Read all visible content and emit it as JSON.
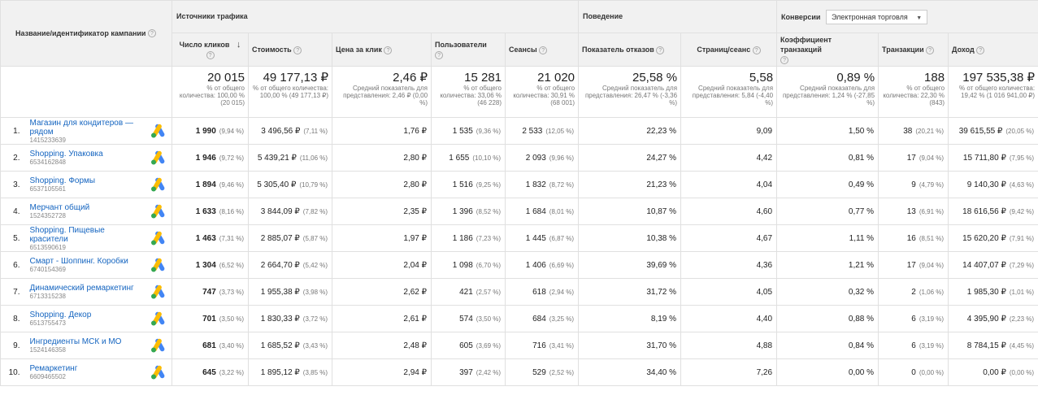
{
  "headers": {
    "name_col": "Название/идентификатор кампании",
    "group_traffic": "Источники трафика",
    "group_behavior": "Поведение",
    "group_conversions": "Конверсии",
    "conversions_select": "Электронная торговля",
    "clicks": "Число кликов",
    "cost": "Стоимость",
    "cpc": "Цена за клик",
    "users": "Пользователи",
    "sessions": "Сеансы",
    "bounce": "Показатель отказов",
    "pages": "Страниц/сеанс",
    "convrate": "Коэффициент транзакций",
    "transactions": "Транзакции",
    "revenue": "Доход",
    "help": "?"
  },
  "totals": {
    "clicks": {
      "big": "20 015",
      "small": "% от общего количества: 100,00 % (20 015)"
    },
    "cost": {
      "big": "49 177,13 ₽",
      "small": "% от общего количества: 100,00 % (49 177,13 ₽)"
    },
    "cpc": {
      "big": "2,46 ₽",
      "small": "Средний показатель для представления: 2,46 ₽ (0,00 %)"
    },
    "users": {
      "big": "15 281",
      "small": "% от общего количества: 33,06 % (46 228)"
    },
    "sessions": {
      "big": "21 020",
      "small": "% от общего количества: 30,91 % (68 001)"
    },
    "bounce": {
      "big": "25,58 %",
      "small": "Средний показатель для представления: 26,47 % (-3,36 %)"
    },
    "pages": {
      "big": "5,58",
      "small": "Средний показатель для представления: 5,84 (-4,40 %)"
    },
    "convrate": {
      "big": "0,89 %",
      "small": "Средний показатель для представления: 1,24 % (-27,85 %)"
    },
    "transactions": {
      "big": "188",
      "small": "% от общего количества: 22,30 % (843)"
    },
    "revenue": {
      "big": "197 535,38 ₽",
      "small": "% от общего количества: 19,42 % (1 016 941,00 ₽)"
    }
  },
  "rows": [
    {
      "idx": "1.",
      "name": "Магазин для кондитеров — рядом",
      "id": "1415233639",
      "clicks": "1 990",
      "clicks_pct": "(9,94 %)",
      "cost": "3 496,56 ₽",
      "cost_pct": "(7,11 %)",
      "cpc": "1,76 ₽",
      "users": "1 535",
      "users_pct": "(9,36 %)",
      "sessions": "2 533",
      "sessions_pct": "(12,05 %)",
      "bounce": "22,23 %",
      "pages": "9,09",
      "convrate": "1,50 %",
      "transactions": "38",
      "transactions_pct": "(20,21 %)",
      "revenue": "39 615,55 ₽",
      "revenue_pct": "(20,05 %)"
    },
    {
      "idx": "2.",
      "name": "Shopping. Упаковка",
      "id": "6534162848",
      "clicks": "1 946",
      "clicks_pct": "(9,72 %)",
      "cost": "5 439,21 ₽",
      "cost_pct": "(11,06 %)",
      "cpc": "2,80 ₽",
      "users": "1 655",
      "users_pct": "(10,10 %)",
      "sessions": "2 093",
      "sessions_pct": "(9,96 %)",
      "bounce": "24,27 %",
      "pages": "4,42",
      "convrate": "0,81 %",
      "transactions": "17",
      "transactions_pct": "(9,04 %)",
      "revenue": "15 711,80 ₽",
      "revenue_pct": "(7,95 %)"
    },
    {
      "idx": "3.",
      "name": "Shopping. Формы",
      "id": "6537105561",
      "clicks": "1 894",
      "clicks_pct": "(9,46 %)",
      "cost": "5 305,40 ₽",
      "cost_pct": "(10,79 %)",
      "cpc": "2,80 ₽",
      "users": "1 516",
      "users_pct": "(9,25 %)",
      "sessions": "1 832",
      "sessions_pct": "(8,72 %)",
      "bounce": "21,23 %",
      "pages": "4,04",
      "convrate": "0,49 %",
      "transactions": "9",
      "transactions_pct": "(4,79 %)",
      "revenue": "9 140,30 ₽",
      "revenue_pct": "(4,63 %)"
    },
    {
      "idx": "4.",
      "name": "Мерчант общий",
      "id": "1524352728",
      "clicks": "1 633",
      "clicks_pct": "(8,16 %)",
      "cost": "3 844,09 ₽",
      "cost_pct": "(7,82 %)",
      "cpc": "2,35 ₽",
      "users": "1 396",
      "users_pct": "(8,52 %)",
      "sessions": "1 684",
      "sessions_pct": "(8,01 %)",
      "bounce": "10,87 %",
      "pages": "4,60",
      "convrate": "0,77 %",
      "transactions": "13",
      "transactions_pct": "(6,91 %)",
      "revenue": "18 616,56 ₽",
      "revenue_pct": "(9,42 %)"
    },
    {
      "idx": "5.",
      "name": "Shopping. Пищевые красители",
      "id": "6513590619",
      "clicks": "1 463",
      "clicks_pct": "(7,31 %)",
      "cost": "2 885,07 ₽",
      "cost_pct": "(5,87 %)",
      "cpc": "1,97 ₽",
      "users": "1 186",
      "users_pct": "(7,23 %)",
      "sessions": "1 445",
      "sessions_pct": "(6,87 %)",
      "bounce": "10,38 %",
      "pages": "4,67",
      "convrate": "1,11 %",
      "transactions": "16",
      "transactions_pct": "(8,51 %)",
      "revenue": "15 620,20 ₽",
      "revenue_pct": "(7,91 %)"
    },
    {
      "idx": "6.",
      "name": "Смарт - Шоппинг. Коробки",
      "id": "6740154369",
      "clicks": "1 304",
      "clicks_pct": "(6,52 %)",
      "cost": "2 664,70 ₽",
      "cost_pct": "(5,42 %)",
      "cpc": "2,04 ₽",
      "users": "1 098",
      "users_pct": "(6,70 %)",
      "sessions": "1 406",
      "sessions_pct": "(6,69 %)",
      "bounce": "39,69 %",
      "pages": "4,36",
      "convrate": "1,21 %",
      "transactions": "17",
      "transactions_pct": "(9,04 %)",
      "revenue": "14 407,07 ₽",
      "revenue_pct": "(7,29 %)"
    },
    {
      "idx": "7.",
      "name": "Динамический ремаркетинг",
      "id": "6713315238",
      "clicks": "747",
      "clicks_pct": "(3,73 %)",
      "cost": "1 955,38 ₽",
      "cost_pct": "(3,98 %)",
      "cpc": "2,62 ₽",
      "users": "421",
      "users_pct": "(2,57 %)",
      "sessions": "618",
      "sessions_pct": "(2,94 %)",
      "bounce": "31,72 %",
      "pages": "4,05",
      "convrate": "0,32 %",
      "transactions": "2",
      "transactions_pct": "(1,06 %)",
      "revenue": "1 985,30 ₽",
      "revenue_pct": "(1,01 %)"
    },
    {
      "idx": "8.",
      "name": "Shopping. Декор",
      "id": "6513755473",
      "clicks": "701",
      "clicks_pct": "(3,50 %)",
      "cost": "1 830,33 ₽",
      "cost_pct": "(3,72 %)",
      "cpc": "2,61 ₽",
      "users": "574",
      "users_pct": "(3,50 %)",
      "sessions": "684",
      "sessions_pct": "(3,25 %)",
      "bounce": "8,19 %",
      "pages": "4,40",
      "convrate": "0,88 %",
      "transactions": "6",
      "transactions_pct": "(3,19 %)",
      "revenue": "4 395,90 ₽",
      "revenue_pct": "(2,23 %)"
    },
    {
      "idx": "9.",
      "name": "Ингредиенты МСК и МО",
      "id": "1524146358",
      "clicks": "681",
      "clicks_pct": "(3,40 %)",
      "cost": "1 685,52 ₽",
      "cost_pct": "(3,43 %)",
      "cpc": "2,48 ₽",
      "users": "605",
      "users_pct": "(3,69 %)",
      "sessions": "716",
      "sessions_pct": "(3,41 %)",
      "bounce": "31,70 %",
      "pages": "4,88",
      "convrate": "0,84 %",
      "transactions": "6",
      "transactions_pct": "(3,19 %)",
      "revenue": "8 784,15 ₽",
      "revenue_pct": "(4,45 %)"
    },
    {
      "idx": "10.",
      "name": "Ремаркетинг",
      "id": "6609465502",
      "clicks": "645",
      "clicks_pct": "(3,22 %)",
      "cost": "1 895,12 ₽",
      "cost_pct": "(3,85 %)",
      "cpc": "2,94 ₽",
      "users": "397",
      "users_pct": "(2,42 %)",
      "sessions": "529",
      "sessions_pct": "(2,52 %)",
      "bounce": "34,40 %",
      "pages": "7,26",
      "convrate": "0,00 %",
      "transactions": "0",
      "transactions_pct": "(0,00 %)",
      "revenue": "0,00 ₽",
      "revenue_pct": "(0,00 %)"
    }
  ],
  "icons": {
    "ads": "google-ads-icon",
    "help": "help-icon",
    "sort": "sort-down-arrow-icon"
  },
  "colors": {
    "link": "#1565c0",
    "header_bg": "#f1f1f1",
    "ads_blue": "#4285f4",
    "ads_yellow": "#fbbc04",
    "ads_green": "#34a853"
  }
}
